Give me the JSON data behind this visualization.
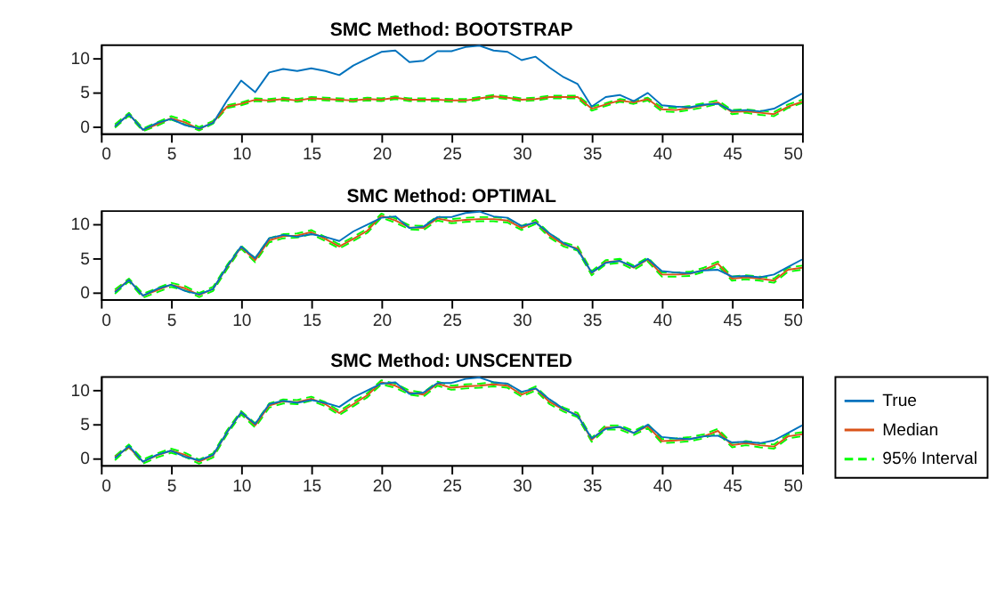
{
  "chart_data": [
    {
      "type": "line",
      "title": "SMC Method: BOOTSTRAP",
      "xlim": [
        0,
        50
      ],
      "xticks": [
        0,
        5,
        10,
        15,
        20,
        25,
        30,
        35,
        40,
        45,
        50
      ],
      "ylim": [
        -1,
        12
      ],
      "yticks": [
        0,
        5,
        10
      ],
      "grid": false,
      "x": [
        1,
        2,
        3,
        4,
        5,
        6,
        7,
        8,
        9,
        10,
        11,
        12,
        13,
        14,
        15,
        16,
        17,
        18,
        19,
        20,
        21,
        22,
        23,
        24,
        25,
        26,
        27,
        28,
        29,
        30,
        31,
        32,
        33,
        34,
        35,
        36,
        37,
        38,
        39,
        40,
        41,
        42,
        43,
        44,
        45,
        46,
        47,
        48,
        49,
        50
      ],
      "series": [
        {
          "color": "#0072bd",
          "line_style": "solid",
          "values": [
            0,
            1.8,
            -0.5,
            0.5,
            1.1,
            0.2,
            -0.3,
            0.5,
            3.8,
            6.7,
            5,
            7.9,
            8.4,
            8.1,
            8.5,
            8.1,
            7.5,
            8.9,
            9.9,
            10.9,
            11.1,
            9.4,
            9.6,
            11,
            11,
            11.6,
            11.8,
            11.1,
            10.9,
            9.7,
            10.2,
            8.6,
            7.2,
            6.2,
            2.9,
            4.3,
            4.6,
            3.7,
            4.9,
            3.1,
            2.9,
            2.8,
            3.2,
            3.3,
            2.3,
            2.4,
            2.2,
            2.6,
            3.7,
            4.8
          ]
        },
        {
          "color": "#d95319",
          "line_style": "solid",
          "values": [
            0,
            1.8,
            -0.5,
            0.3,
            1.2,
            0.6,
            -0.4,
            0.6,
            2.9,
            3.3,
            3.9,
            3.8,
            4.0,
            3.8,
            4.1,
            4.0,
            3.9,
            3.8,
            4.0,
            3.9,
            4.2,
            3.9,
            3.9,
            3.9,
            3.8,
            3.8,
            4.1,
            4.4,
            4.2,
            3.9,
            4.0,
            4.3,
            4.3,
            4.3,
            2.6,
            3.2,
            3.8,
            3.5,
            4.0,
            2.5,
            2.4,
            2.7,
            3.1,
            3.5,
            2.1,
            2.2,
            2.0,
            1.8,
            2.9,
            3.6
          ]
        },
        {
          "color": "#00ff00",
          "line_style": "dashed",
          "values": [
            0.3,
            2.0,
            -0.3,
            0.6,
            1.5,
            0.9,
            -0.1,
            0.8,
            3.1,
            3.5,
            4.1,
            4.0,
            4.2,
            4.0,
            4.3,
            4.2,
            4.1,
            4.0,
            4.2,
            4.1,
            4.4,
            4.1,
            4.1,
            4.1,
            4.0,
            4.0,
            4.3,
            4.6,
            4.4,
            4.1,
            4.2,
            4.5,
            4.5,
            4.5,
            2.9,
            3.4,
            4.0,
            3.7,
            4.2,
            2.8,
            2.7,
            3.0,
            3.4,
            3.8,
            2.4,
            2.5,
            2.3,
            2.1,
            3.2,
            3.9
          ]
        },
        {
          "color": "#00ff00",
          "line_style": "dashed",
          "values": [
            -0.2,
            1.6,
            -0.7,
            0.1,
            1.0,
            0.3,
            -0.6,
            0.4,
            2.7,
            3.1,
            3.7,
            3.6,
            3.8,
            3.6,
            3.9,
            3.8,
            3.7,
            3.6,
            3.8,
            3.7,
            4.0,
            3.7,
            3.7,
            3.7,
            3.6,
            3.6,
            3.9,
            4.2,
            4.0,
            3.7,
            3.8,
            4.1,
            4.1,
            4.1,
            2.3,
            3.0,
            3.6,
            3.3,
            3.8,
            2.2,
            2.1,
            2.4,
            2.8,
            3.3,
            1.8,
            2.0,
            1.7,
            1.5,
            2.7,
            3.4
          ]
        }
      ]
    },
    {
      "type": "line",
      "title": "SMC Method: OPTIMAL",
      "xlim": [
        0,
        50
      ],
      "xticks": [
        0,
        5,
        10,
        15,
        20,
        25,
        30,
        35,
        40,
        45,
        50
      ],
      "ylim": [
        -1,
        12
      ],
      "yticks": [
        0,
        5,
        10
      ],
      "grid": false,
      "x": [
        1,
        2,
        3,
        4,
        5,
        6,
        7,
        8,
        9,
        10,
        11,
        12,
        13,
        14,
        15,
        16,
        17,
        18,
        19,
        20,
        21,
        22,
        23,
        24,
        25,
        26,
        27,
        28,
        29,
        30,
        31,
        32,
        33,
        34,
        35,
        36,
        37,
        38,
        39,
        40,
        41,
        42,
        43,
        44,
        45,
        46,
        47,
        48,
        49,
        50
      ],
      "series": [
        {
          "color": "#0072bd",
          "line_style": "solid",
          "values": [
            0,
            1.8,
            -0.5,
            0.5,
            1.1,
            0.2,
            -0.3,
            0.5,
            3.8,
            6.7,
            5,
            7.9,
            8.4,
            8.1,
            8.5,
            8.1,
            7.5,
            8.9,
            9.9,
            10.9,
            11.1,
            9.4,
            9.6,
            11,
            11,
            11.6,
            11.8,
            11.1,
            10.9,
            9.7,
            10.2,
            8.6,
            7.2,
            6.2,
            2.9,
            4.3,
            4.6,
            3.7,
            4.9,
            3.1,
            2.9,
            2.8,
            3.2,
            3.3,
            2.3,
            2.4,
            2.2,
            2.6,
            3.7,
            4.8
          ]
        },
        {
          "color": "#d95319",
          "line_style": "solid",
          "values": [
            0.1,
            1.8,
            -0.5,
            0.3,
            1.1,
            0.6,
            -0.4,
            0.5,
            3.7,
            6.6,
            4.7,
            7.6,
            8.2,
            8.3,
            8.8,
            7.8,
            6.7,
            7.8,
            9.0,
            11.2,
            10.5,
            9.5,
            9.4,
            10.8,
            10.4,
            10.6,
            10.7,
            10.7,
            10.5,
            9.4,
            10.3,
            8.3,
            7.0,
            6.4,
            2.8,
            4.4,
            4.6,
            3.6,
            4.8,
            2.6,
            2.6,
            2.7,
            3.3,
            4.2,
            2.0,
            2.2,
            2.0,
            1.7,
            3.3,
            3.6
          ]
        },
        {
          "color": "#00ff00",
          "line_style": "dashed",
          "values": [
            0.4,
            2.0,
            -0.2,
            0.6,
            1.4,
            0.9,
            -0.1,
            0.8,
            4.0,
            6.8,
            5.0,
            7.9,
            8.5,
            8.6,
            9.1,
            8.1,
            7.0,
            8.1,
            9.3,
            11.5,
            10.8,
            9.8,
            9.7,
            11.1,
            10.7,
            10.9,
            11.0,
            11.0,
            10.8,
            9.7,
            10.6,
            8.6,
            7.3,
            6.7,
            3.1,
            4.7,
            4.9,
            3.9,
            5.1,
            2.9,
            2.9,
            3.0,
            3.6,
            4.5,
            2.3,
            2.5,
            2.3,
            2.0,
            3.6,
            3.9
          ]
        },
        {
          "color": "#00ff00",
          "line_style": "dashed",
          "values": [
            -0.2,
            1.6,
            -0.8,
            0.0,
            0.8,
            0.3,
            -0.7,
            0.2,
            3.4,
            6.4,
            4.4,
            7.3,
            7.9,
            8.0,
            8.5,
            7.5,
            6.4,
            7.5,
            8.7,
            10.9,
            10.2,
            9.2,
            9.1,
            10.5,
            10.1,
            10.3,
            10.4,
            10.4,
            10.2,
            9.1,
            10.0,
            8.0,
            6.7,
            6.1,
            2.5,
            4.1,
            4.3,
            3.3,
            4.5,
            2.3,
            2.3,
            2.4,
            3.0,
            3.9,
            1.7,
            1.9,
            1.7,
            1.4,
            3.0,
            3.3
          ]
        }
      ]
    },
    {
      "type": "line",
      "title": "SMC Method: UNSCENTED",
      "xlim": [
        0,
        50
      ],
      "xticks": [
        0,
        5,
        10,
        15,
        20,
        25,
        30,
        35,
        40,
        45,
        50
      ],
      "ylim": [
        -1,
        12
      ],
      "yticks": [
        0,
        5,
        10
      ],
      "grid": false,
      "legend": "right",
      "x": [
        1,
        2,
        3,
        4,
        5,
        6,
        7,
        8,
        9,
        10,
        11,
        12,
        13,
        14,
        15,
        16,
        17,
        18,
        19,
        20,
        21,
        22,
        23,
        24,
        25,
        26,
        27,
        28,
        29,
        30,
        31,
        32,
        33,
        34,
        35,
        36,
        37,
        38,
        39,
        40,
        41,
        42,
        43,
        44,
        45,
        46,
        47,
        48,
        49,
        50
      ],
      "series": [
        {
          "name": "True",
          "color": "#0072bd",
          "line_style": "solid",
          "values": [
            0,
            1.8,
            -0.5,
            0.5,
            1.1,
            0.2,
            -0.3,
            0.5,
            3.8,
            6.7,
            5,
            7.9,
            8.4,
            8.1,
            8.5,
            8.1,
            7.5,
            8.9,
            9.9,
            10.9,
            11.1,
            9.4,
            9.6,
            11,
            11,
            11.6,
            11.8,
            11.1,
            10.9,
            9.7,
            10.2,
            8.6,
            7.2,
            6.2,
            2.9,
            4.3,
            4.6,
            3.7,
            4.9,
            3.1,
            2.9,
            2.8,
            3.2,
            3.3,
            2.3,
            2.4,
            2.2,
            2.6,
            3.7,
            4.8
          ]
        },
        {
          "name": "Median",
          "color": "#d95319",
          "line_style": "solid",
          "values": [
            0.2,
            1.6,
            -0.5,
            0.4,
            1.1,
            0.5,
            -0.5,
            0.4,
            3.8,
            6.7,
            4.8,
            7.7,
            8.3,
            8.2,
            8.7,
            7.9,
            6.6,
            7.9,
            9.2,
            11.1,
            10.6,
            9.6,
            9.3,
            10.9,
            10.3,
            10.5,
            10.6,
            10.8,
            10.6,
            9.3,
            10.2,
            8.2,
            7.1,
            6.3,
            2.7,
            4.5,
            4.5,
            3.7,
            4.7,
            2.5,
            2.6,
            2.8,
            3.2,
            4.0,
            1.9,
            2.2,
            1.9,
            1.7,
            3.2,
            3.5
          ]
        },
        {
          "name": "95% Interval",
          "color": "#00ff00",
          "line_style": "dashed",
          "values": [
            0.3,
            2.0,
            -0.2,
            0.7,
            1.4,
            0.8,
            -0.2,
            0.7,
            4.1,
            6.9,
            5.1,
            8.0,
            8.6,
            8.5,
            9.0,
            8.2,
            6.9,
            8.2,
            9.5,
            11.4,
            10.9,
            9.9,
            9.6,
            11.2,
            10.6,
            10.8,
            10.9,
            11.1,
            10.9,
            9.6,
            10.5,
            8.5,
            7.4,
            6.6,
            3.0,
            4.8,
            4.8,
            4.0,
            5.0,
            2.8,
            2.9,
            3.1,
            3.5,
            4.3,
            2.2,
            2.5,
            2.2,
            2.0,
            3.5,
            3.8
          ]
        },
        {
          "color": "#00ff00",
          "line_style": "dashed",
          "values": [
            -0.3,
            1.6,
            -0.8,
            0.1,
            0.8,
            0.2,
            -0.8,
            0.1,
            3.5,
            6.4,
            4.5,
            7.4,
            8.0,
            7.9,
            8.4,
            7.6,
            6.3,
            7.6,
            8.9,
            10.8,
            10.3,
            9.3,
            9.0,
            10.6,
            10.0,
            10.2,
            10.3,
            10.5,
            10.3,
            9.0,
            9.9,
            7.9,
            6.8,
            6.0,
            2.4,
            4.2,
            4.2,
            3.4,
            4.4,
            2.2,
            2.3,
            2.5,
            2.9,
            3.7,
            1.6,
            1.9,
            1.6,
            1.4,
            2.9,
            3.2
          ]
        }
      ]
    }
  ]
}
